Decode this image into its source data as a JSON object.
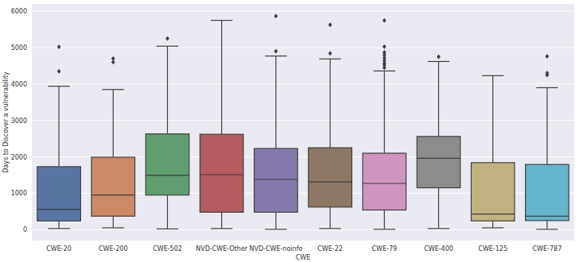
{
  "chart_data": {
    "type": "box",
    "x_label": "CWE",
    "y_label": "Days to Discover a vulnerability",
    "categories": [
      "CWE-20",
      "CWE-200",
      "CWE-502",
      "NVD-CWE-Other",
      "NVD-CWE-noinfo",
      "CWE-22",
      "CWE-79",
      "CWE-400",
      "CWE-125",
      "CWE-787"
    ],
    "colors": [
      "#5975a4",
      "#cc8963",
      "#5f9e6e",
      "#b55d60",
      "#857aab",
      "#8d7866",
      "#d095bf",
      "#8c8c8c",
      "#c1b37f",
      "#64b5cd"
    ],
    "boxes": [
      {
        "whislo": 30,
        "q1": 240,
        "median": 560,
        "q3": 1730,
        "whishi": 3940,
        "fliers": [
          4350,
          5020
        ]
      },
      {
        "whislo": 50,
        "q1": 370,
        "median": 950,
        "q3": 1990,
        "whishi": 3850,
        "fliers": [
          4600,
          4700
        ]
      },
      {
        "whislo": 20,
        "q1": 950,
        "median": 1490,
        "q3": 2630,
        "whishi": 5040,
        "fliers": [
          5250
        ]
      },
      {
        "whislo": 30,
        "q1": 480,
        "median": 1510,
        "q3": 2620,
        "whishi": 5750,
        "fliers": []
      },
      {
        "whislo": 10,
        "q1": 480,
        "median": 1380,
        "q3": 2230,
        "whishi": 4770,
        "fliers": [
          4900,
          5870
        ]
      },
      {
        "whislo": 30,
        "q1": 620,
        "median": 1310,
        "q3": 2250,
        "whishi": 4690,
        "fliers": [
          4840,
          5630
        ]
      },
      {
        "whislo": 10,
        "q1": 540,
        "median": 1270,
        "q3": 2100,
        "whishi": 4360,
        "fliers": [
          4450,
          4520,
          4580,
          4650,
          4720,
          4800,
          4870,
          5030,
          5750
        ]
      },
      {
        "whislo": 30,
        "q1": 1150,
        "median": 1960,
        "q3": 2560,
        "whishi": 4620,
        "fliers": [
          4750
        ]
      },
      {
        "whislo": 50,
        "q1": 240,
        "median": 430,
        "q3": 1840,
        "whishi": 4230,
        "fliers": []
      },
      {
        "whislo": 10,
        "q1": 250,
        "median": 370,
        "q3": 1790,
        "whishi": 3900,
        "fliers": [
          4250,
          4300,
          4760
        ]
      }
    ],
    "ylim": [
      -300,
      6200
    ],
    "yticks": [
      0,
      1000,
      2000,
      3000,
      4000,
      5000,
      6000
    ],
    "grid": true
  }
}
